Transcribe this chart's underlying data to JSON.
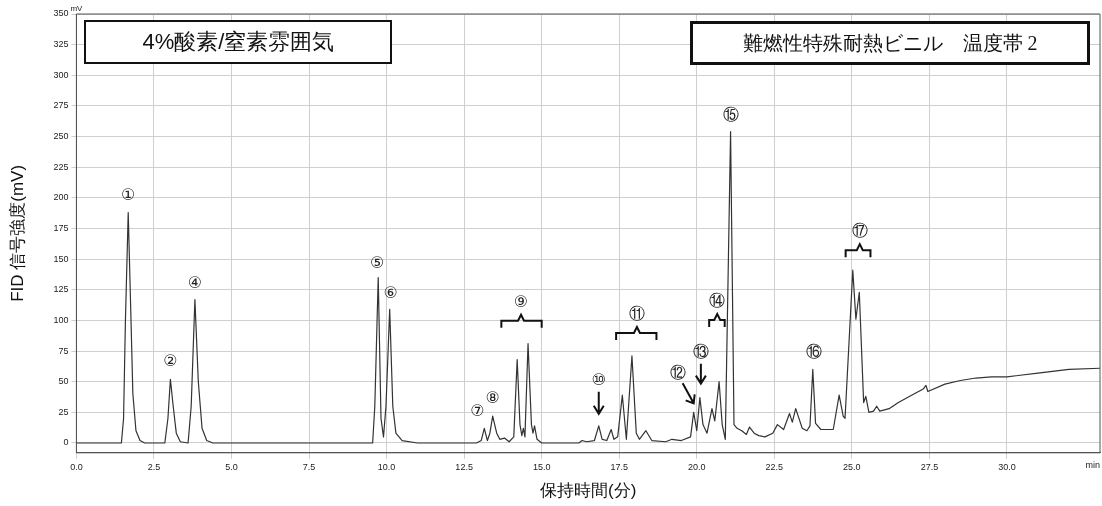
{
  "chart_data": {
    "type": "line",
    "xlabel": "保持時間(分)",
    "ylabel": "FID 信号強度(mV)",
    "xlim": [
      0,
      33
    ],
    "ylim": [
      -8,
      350
    ],
    "xticks": [
      {
        "value": 0,
        "label": "0.0"
      },
      {
        "value": 2.5,
        "label": "2.5"
      },
      {
        "value": 5,
        "label": "5.0"
      },
      {
        "value": 7.5,
        "label": "7.5"
      },
      {
        "value": 10,
        "label": "10.0"
      },
      {
        "value": 12.5,
        "label": "12.5"
      },
      {
        "value": 15,
        "label": "15.0"
      },
      {
        "value": 17.5,
        "label": "17.5"
      },
      {
        "value": 20,
        "label": "20.0"
      },
      {
        "value": 22.5,
        "label": "22.5"
      },
      {
        "value": 25,
        "label": "25.0"
      },
      {
        "value": 27.5,
        "label": "27.5"
      },
      {
        "value": 30,
        "label": "30.0"
      }
    ],
    "yticks": [
      0,
      25,
      50,
      75,
      100,
      125,
      150,
      175,
      200,
      225,
      250,
      275,
      300,
      325,
      350
    ],
    "grid": true,
    "legend": false,
    "marker": "none",
    "line_style": "solid",
    "series": [
      {
        "color": "#333333",
        "x": [
          0,
          1.45,
          1.52,
          1.58,
          1.67,
          1.75,
          1.82,
          1.92,
          2.05,
          2.2,
          2.85,
          2.95,
          3.03,
          3.12,
          3.22,
          3.35,
          3.6,
          3.7,
          3.82,
          3.93,
          4.05,
          4.2,
          4.4,
          9.55,
          9.62,
          9.73,
          9.82,
          9.9,
          9.98,
          10.1,
          10.2,
          10.3,
          10.5,
          11.0,
          12.9,
          13.05,
          13.15,
          13.25,
          13.33,
          13.42,
          13.55,
          13.65,
          13.8,
          13.95,
          14.1,
          14.21,
          14.3,
          14.36,
          14.41,
          14.46,
          14.56,
          14.67,
          14.72,
          14.77,
          14.85,
          15.0,
          16.2,
          16.3,
          16.45,
          16.7,
          16.84,
          16.95,
          17.1,
          17.24,
          17.33,
          17.45,
          17.6,
          17.73,
          17.91,
          18.05,
          18.15,
          18.36,
          18.55,
          19.0,
          19.2,
          19.5,
          19.8,
          19.9,
          20.0,
          20.1,
          20.2,
          20.33,
          20.49,
          20.58,
          20.72,
          20.82,
          20.92,
          21.09,
          21.2,
          21.3,
          21.45,
          21.6,
          21.7,
          21.85,
          22.0,
          22.2,
          22.45,
          22.6,
          22.8,
          22.99,
          23.08,
          23.19,
          23.4,
          23.55,
          23.65,
          23.74,
          23.83,
          24.0,
          24.4,
          24.59,
          24.72,
          24.78,
          25.03,
          25.13,
          25.24,
          25.38,
          25.45,
          25.55,
          25.7,
          25.8,
          25.9,
          26.2,
          26.5,
          27.0,
          27.3,
          27.39,
          27.45,
          28.0,
          28.5,
          29.0,
          29.5,
          30.0,
          31.0,
          32.0,
          33.0
        ],
        "values": [
          0,
          0,
          20,
          100,
          188,
          110,
          40,
          10,
          2,
          0,
          0,
          20,
          52,
          30,
          8,
          1,
          0,
          30,
          117,
          50,
          12,
          2,
          0,
          0,
          30,
          135,
          20,
          5,
          30,
          109,
          30,
          8,
          2,
          0,
          0,
          2,
          12,
          2,
          8,
          22,
          8,
          3,
          4,
          1,
          5,
          68,
          15,
          6,
          12,
          5,
          81,
          15,
          8,
          14,
          3,
          0,
          0,
          2,
          1,
          2,
          14,
          3,
          2,
          11,
          3,
          5,
          39,
          3,
          71,
          8,
          3,
          10,
          2,
          1,
          3,
          2,
          5,
          25,
          10,
          37,
          15,
          8,
          28,
          18,
          50,
          15,
          3,
          254,
          15,
          12,
          10,
          7,
          13,
          8,
          6,
          5,
          8,
          15,
          11,
          24,
          17,
          28,
          12,
          10,
          14,
          60,
          16,
          11,
          11,
          39,
          22,
          20,
          141,
          101,
          123,
          33,
          38,
          25,
          26,
          30,
          26,
          28,
          33,
          40,
          44,
          47,
          42,
          48,
          51,
          53,
          54,
          54,
          57,
          60,
          61
        ]
      }
    ],
    "annotations": [
      "4%酸素/窒素雰囲気",
      "難燃性特殊耐熱ビニル　温度帯 2",
      "mV",
      "min",
      {
        "text": "①",
        "x": 1.67,
        "y": 188
      },
      {
        "text": "②",
        "x": 3.03,
        "y": 52
      },
      {
        "text": "④",
        "x": 3.82,
        "y": 117
      },
      {
        "text": "⑤",
        "x": 9.73,
        "y": 135
      },
      {
        "text": "⑥",
        "x": 10.1,
        "y": 109
      },
      {
        "text": "⑦",
        "x": 13.15,
        "y": 12
      },
      {
        "text": "⑧",
        "x": 13.42,
        "y": 22
      },
      {
        "text": "⑨",
        "x": 14.56,
        "y": 81
      },
      {
        "text": "⑩",
        "x": 16.84,
        "y": 14
      },
      {
        "text": "⑪",
        "x": 17.91,
        "y": 71
      },
      {
        "text": "⑫",
        "x": 19.9,
        "y": 25
      },
      {
        "text": "⑬",
        "x": 20.1,
        "y": 37
      },
      "⑭",
      {
        "text": "⑮",
        "x": 21.09,
        "y": 254
      },
      {
        "text": "⑯",
        "x": 23.74,
        "y": 60
      },
      {
        "text": "⑰",
        "x": 25.03,
        "y": 141
      }
    ]
  }
}
